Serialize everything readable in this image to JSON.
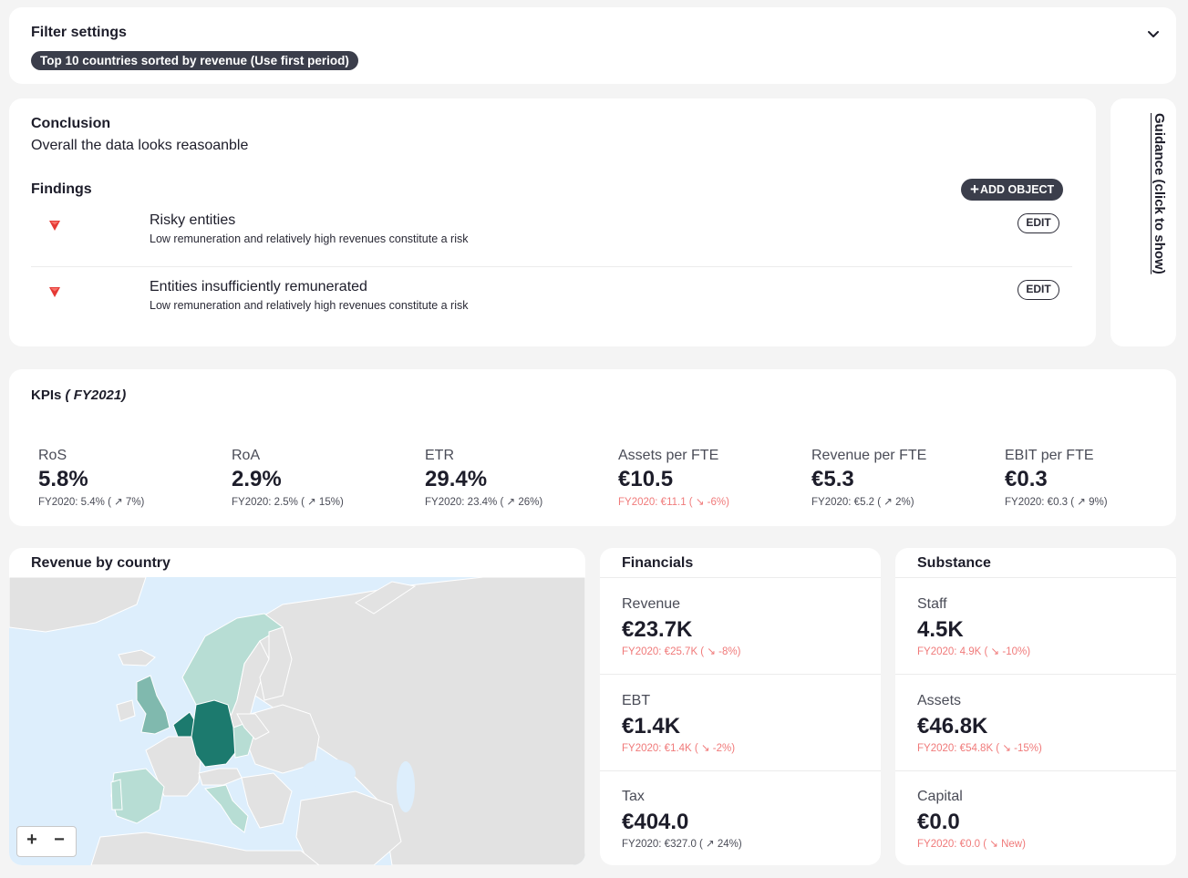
{
  "filter": {
    "title": "Filter settings",
    "chip": "Top 10 countries sorted by revenue (Use first period)"
  },
  "conclusion": {
    "title": "Conclusion",
    "text": "Overall the data looks reasoanble",
    "findings_title": "Findings",
    "add_button": "ADD OBJECT",
    "add_icon": "+",
    "findings": [
      {
        "title": "Risky entities",
        "description": "Low remuneration and relatively high revenues constitute a risk",
        "edit": "EDIT",
        "severity_color": "#e53935"
      },
      {
        "title": "Entities insufficiently remunerated",
        "description": "Low remuneration and relatively high revenues constitute a risk",
        "edit": "EDIT",
        "severity_color": "#e53935"
      }
    ]
  },
  "guidance": {
    "label": "Guidance (click to show)"
  },
  "kpis": {
    "title": "KPIs",
    "period": "( FY2021)",
    "items": [
      {
        "label": "RoS",
        "value": "5.8%",
        "prev": "FY2020: 5.4% ( ↗ 7%)",
        "trend": "up"
      },
      {
        "label": "RoA",
        "value": "2.9%",
        "prev": "FY2020: 2.5% ( ↗ 15%)",
        "trend": "up"
      },
      {
        "label": "ETR",
        "value": "29.4%",
        "prev": "FY2020: 23.4% ( ↗ 26%)",
        "trend": "up"
      },
      {
        "label": "Assets per FTE",
        "value": "€10.5",
        "prev": "FY2020: €11.1 ( ↘ -6%)",
        "trend": "down"
      },
      {
        "label": "Revenue per FTE",
        "value": "€5.3",
        "prev": "FY2020: €5.2 ( ↗ 2%)",
        "trend": "up"
      },
      {
        "label": "EBIT per FTE",
        "value": "€0.3",
        "prev": "FY2020: €0.3 ( ↗ 9%)",
        "trend": "up"
      }
    ]
  },
  "map": {
    "title": "Revenue by country",
    "zoom_in": "+",
    "zoom_out": "−",
    "colors": {
      "sea": "#ddeefc",
      "land": "#e2e2e2",
      "high": "#1c7a6e",
      "mid": "#80b9ae",
      "low": "#b7ddd4"
    }
  },
  "financials": {
    "title": "Financials",
    "items": [
      {
        "label": "Revenue",
        "value": "€23.7K",
        "prev": "FY2020: €25.7K ( ↘ -8%)",
        "trend": "down"
      },
      {
        "label": "EBT",
        "value": "€1.4K",
        "prev": "FY2020: €1.4K ( ↘ -2%)",
        "trend": "down"
      },
      {
        "label": "Tax",
        "value": "€404.0",
        "prev": "FY2020: €327.0 ( ↗ 24%)",
        "trend": "up"
      }
    ]
  },
  "substance": {
    "title": "Substance",
    "items": [
      {
        "label": "Staff",
        "value": "4.5K",
        "prev": "FY2020: 4.9K ( ↘ -10%)",
        "trend": "down"
      },
      {
        "label": "Assets",
        "value": "€46.8K",
        "prev": "FY2020: €54.8K ( ↘ -15%)",
        "trend": "down"
      },
      {
        "label": "Capital",
        "value": "€0.0",
        "prev": "FY2020: €0.0 ( ↘ New)",
        "trend": "down"
      }
    ]
  },
  "colors": {
    "accent_dark": "#3b3e4b",
    "negative": "#f07a7a",
    "icons": [
      "chevron-down-icon",
      "red-triangle-icon",
      "plus-icon"
    ]
  }
}
